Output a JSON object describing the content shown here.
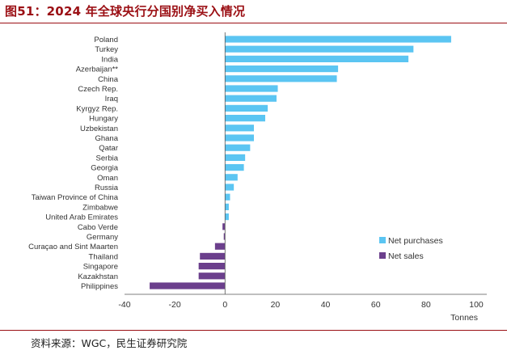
{
  "header": {
    "title": "图51：2024 年全球央行分国别净买入情况"
  },
  "footer": {
    "source": "资料来源：WGC，民生证券研究院"
  },
  "colors": {
    "purchase": "#5bc5f2",
    "sale": "#6b3f8c",
    "title": "#9b0f14"
  },
  "chart_data": {
    "type": "bar",
    "orientation": "horizontal",
    "title": "",
    "xlabel": "Tonnes",
    "ylabel": "",
    "xlim": [
      -40,
      100
    ],
    "xticks": [
      -40,
      -20,
      0,
      20,
      40,
      60,
      80,
      100
    ],
    "grid": false,
    "legend_position": "bottom-right",
    "categories": [
      "Poland",
      "Turkey",
      "India",
      "Azerbaijan**",
      "China",
      "Czech Rep.",
      "Iraq",
      "Kyrgyz Rep.",
      "Hungary",
      "Uzbekistan",
      "Ghana",
      "Qatar",
      "Serbia",
      "Georgia",
      "Oman",
      "Russia",
      "Taiwan Province of China",
      "Zimbabwe",
      "United Arab Emirates",
      "Cabo Verde",
      "Germany",
      "Curaçao and Sint Maarten",
      "Thailand",
      "Singapore",
      "Kazakhstan",
      "Philippines"
    ],
    "values": [
      90,
      75,
      73,
      45,
      44.5,
      21,
      20.5,
      17,
      16,
      11.5,
      11.5,
      10,
      8,
      7.5,
      5,
      3.5,
      2,
      1.5,
      1.5,
      -1,
      -0.5,
      -4,
      -10,
      -10.5,
      -10.5,
      -30
    ],
    "series": [
      {
        "name": "Net purchases"
      },
      {
        "name": "Net sales"
      }
    ]
  }
}
